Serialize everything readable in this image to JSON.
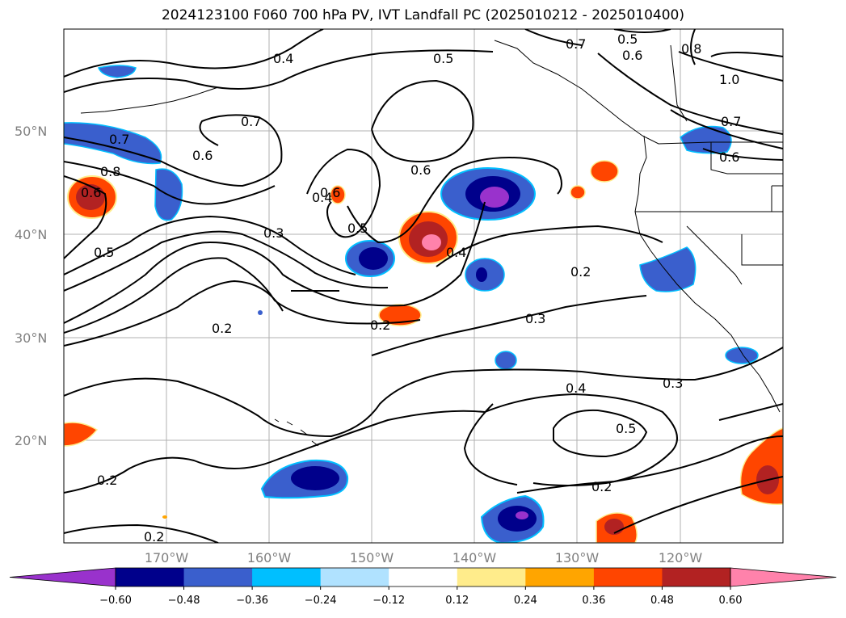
{
  "title": "2024123100 F060 700 hPa PV, IVT Landfall PC (2025010212 - 2025010400)",
  "lat_labels": [
    "50°N",
    "40°N",
    "30°N",
    "20°N"
  ],
  "lon_labels": [
    "170°W",
    "160°W",
    "150°W",
    "140°W",
    "130°W",
    "120°W"
  ],
  "colorbar": {
    "colors": [
      "#9932CC",
      "#00008B",
      "#3A5FCD",
      "#00BFFF",
      "#B0E2FF",
      "#FFFFFF",
      "#FFEC8B",
      "#FFA500",
      "#FF4500",
      "#B22222",
      "#FF82AB"
    ],
    "ticks": [
      "−0.60",
      "−0.48",
      "−0.36",
      "−0.24",
      "−0.12",
      "0.12",
      "0.24",
      "0.36",
      "0.48",
      "0.60"
    ]
  },
  "contour_labels": [
    "0.4",
    "0.5",
    "0.7",
    "0.5",
    "0.6",
    "0.8",
    "1.0",
    "0.7",
    "0.6",
    "0.7",
    "0.6",
    "0.8",
    "0.6",
    "0.5",
    "0.7",
    "0.6",
    "0.6",
    "0.5",
    "0.4",
    "0.3",
    "0.4",
    "0.2",
    "0.2",
    "0.2",
    "0.3",
    "0.3",
    "0.4",
    "0.5",
    "0.2",
    "0.2",
    "0.2"
  ]
}
